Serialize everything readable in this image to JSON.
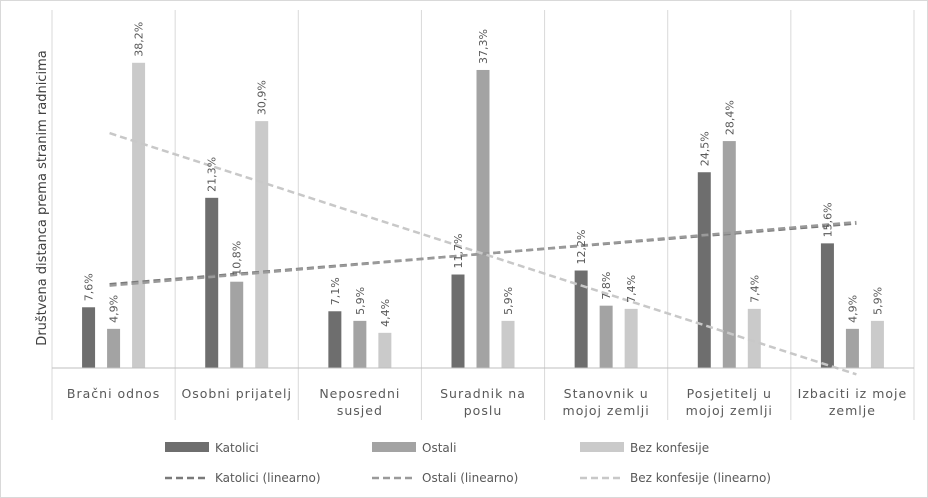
{
  "chart_data": {
    "type": "bar",
    "title": "",
    "xlabel": "",
    "ylabel": "Društvena distanca prema stranim radnicima",
    "ylim": [
      0,
      40
    ],
    "grid": "vertical category separators",
    "legend_position": "bottom",
    "categories": [
      [
        "Bračni odnos"
      ],
      [
        "Osobni prijatelj"
      ],
      [
        "Neposredni",
        "susjed"
      ],
      [
        "Suradnik na",
        "poslu"
      ],
      [
        "Stanovnik u",
        "mojoj zemlji"
      ],
      [
        "Posjetitelj u",
        "mojoj zemlji"
      ],
      [
        "Izbaciti iz moje",
        "zemlje"
      ]
    ],
    "series": [
      {
        "name": "Katolici",
        "values": [
          7.6,
          21.3,
          7.1,
          11.7,
          12.2,
          24.5,
          15.6
        ],
        "labels": [
          "7,6%",
          "21,3%",
          "7,1%",
          "11,7%",
          "12,2%",
          "24,5%",
          "15,6%"
        ],
        "color": "#6e6e6e"
      },
      {
        "name": "Ostali",
        "values": [
          4.9,
          10.8,
          5.9,
          37.3,
          7.8,
          28.4,
          4.9
        ],
        "labels": [
          "4,9%",
          "10,8%",
          "5,9%",
          "37,3%",
          "7,8%",
          "28,4%",
          "4,9%"
        ],
        "color": "#a3a3a3"
      },
      {
        "name": "Bez konfesije",
        "values": [
          38.2,
          30.9,
          4.4,
          5.9,
          7.4,
          7.4,
          5.9
        ],
        "labels": [
          "38,2%",
          "30,9%",
          "4,4%",
          "5,9%",
          "7,4%",
          "7,4%",
          "5,9%"
        ],
        "color": "#cacaca"
      }
    ],
    "trendlines": [
      {
        "name": "Katolici (linearno)",
        "of_series": "Katolici",
        "color": "#7a7a7a"
      },
      {
        "name": "Ostali (linearno)",
        "of_series": "Ostali",
        "color": "#9a9a9a"
      },
      {
        "name": "Bez konfesije (linearno)",
        "of_series": "Bez konfesije",
        "color": "#c8c8c8"
      }
    ]
  }
}
